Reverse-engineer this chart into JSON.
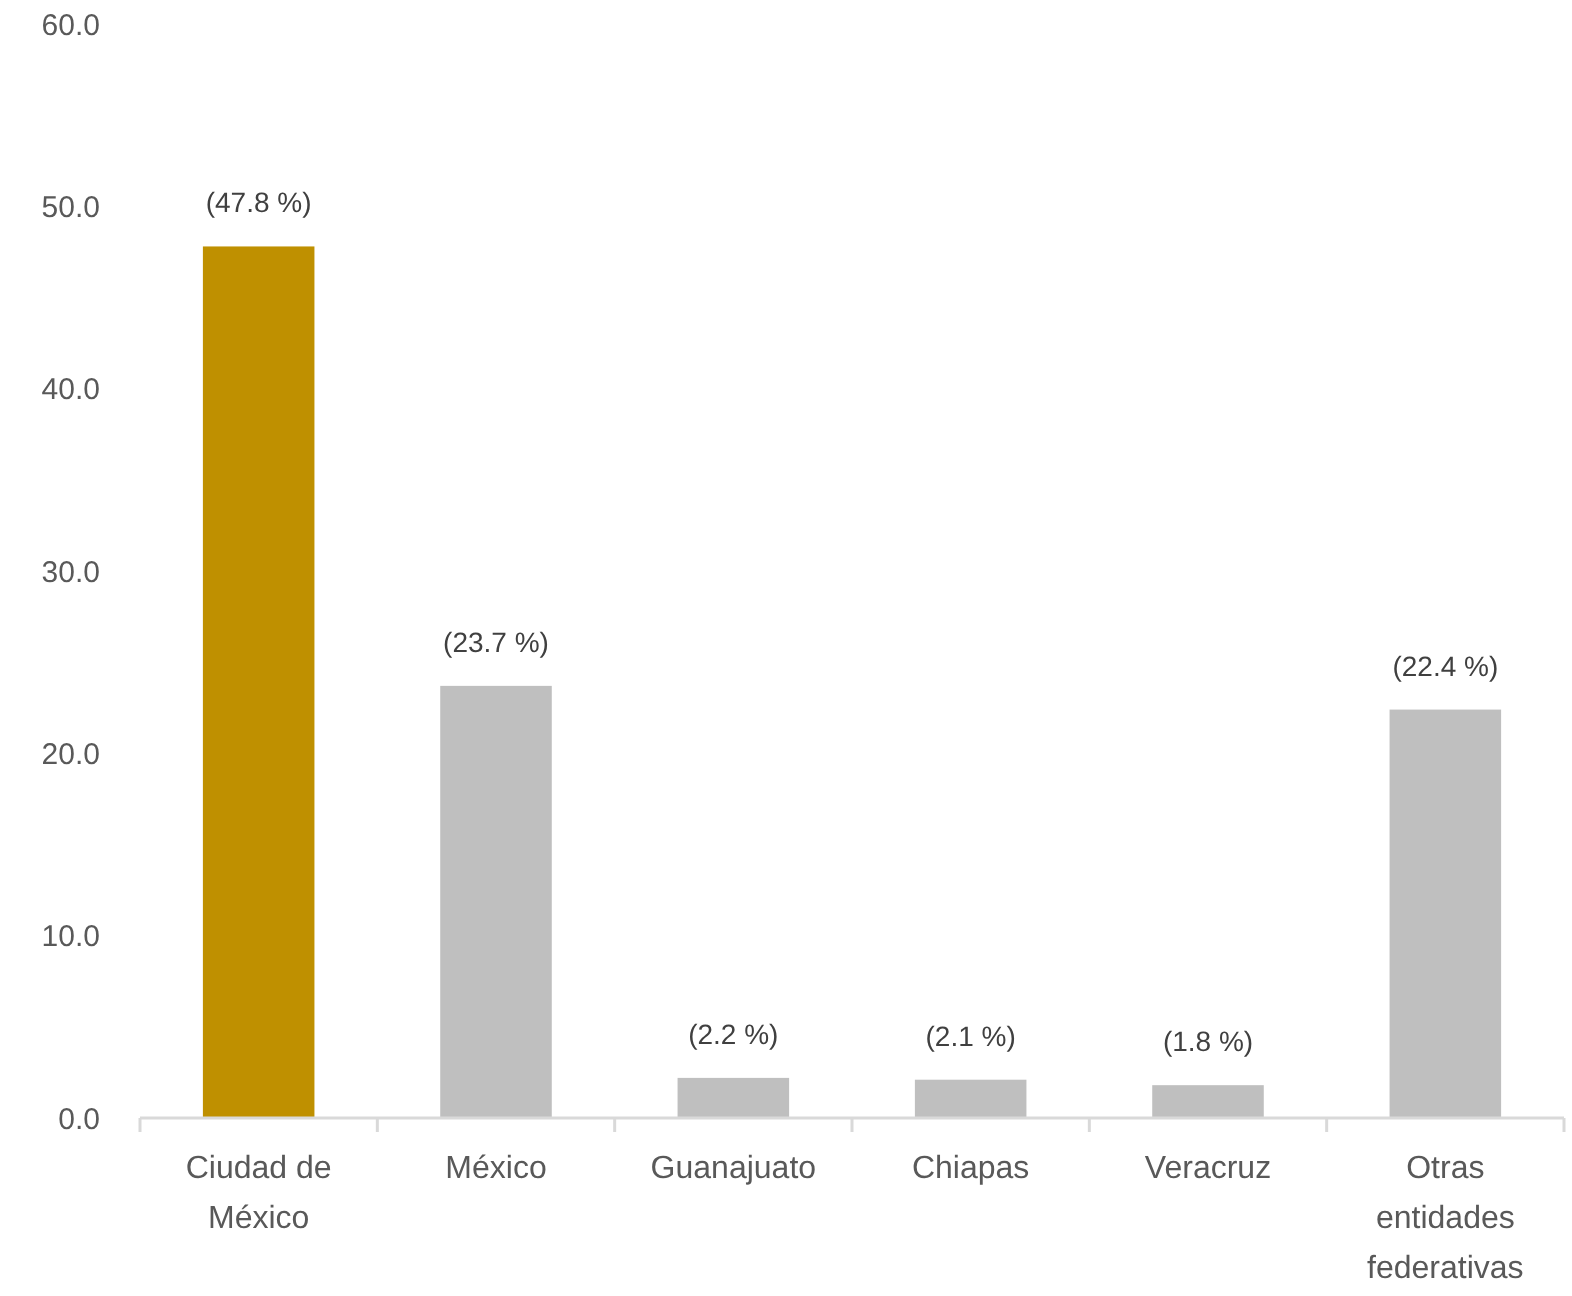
{
  "chart_data": {
    "type": "bar",
    "categories": [
      "Ciudad de México",
      "México",
      "Guanajuato",
      "Chiapas",
      "Veracruz",
      "Otras entidades federativas"
    ],
    "values": [
      47.8,
      23.7,
      2.2,
      2.1,
      1.8,
      22.4
    ],
    "colors": [
      "#bf9000",
      "#bfbfbf",
      "#bfbfbf",
      "#bfbfbf",
      "#bfbfbf",
      "#bfbfbf"
    ],
    "value_labels": [
      "(47.8 %)",
      "(23.7 %)",
      "(2.2 %)",
      "(2.1 %)",
      "(1.8 %)",
      "(22.4 %)"
    ],
    "ylim": [
      0,
      60
    ],
    "yticks": [
      {
        "value": 0,
        "label": "0.0"
      },
      {
        "value": 10,
        "label": "10.0"
      },
      {
        "value": 20,
        "label": "20.0"
      },
      {
        "value": 30,
        "label": "30.0"
      },
      {
        "value": 40,
        "label": "40.0"
      },
      {
        "value": 50,
        "label": "50.0"
      },
      {
        "value": 60,
        "label": "60.0"
      }
    ],
    "grid": false
  }
}
